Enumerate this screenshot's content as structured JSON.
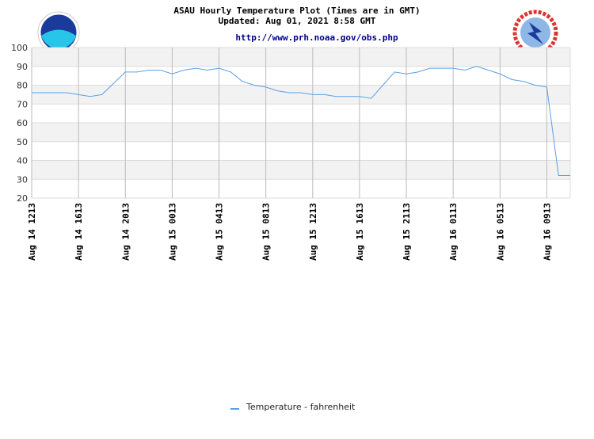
{
  "chart_data": {
    "type": "line",
    "title": "ASAU Hourly Temperature Plot (Times are in GMT)",
    "subtitle": "Updated: Aug 01, 2021 8:58 GMT",
    "link": "http://www.prh.noaa.gov/obs.php",
    "categories": [
      "Aug 14 1213",
      null,
      null,
      null,
      "Aug 14 1613",
      null,
      null,
      null,
      "Aug 14 2013",
      null,
      null,
      null,
      "Aug 15 0013",
      null,
      null,
      null,
      "Aug 15 0413",
      null,
      null,
      null,
      "Aug 15 0813",
      null,
      null,
      null,
      "Aug 15 1213",
      null,
      null,
      null,
      "Aug 15 1613",
      null,
      null,
      null,
      "Aug 15 2113",
      null,
      null,
      null,
      "Aug 16 0113",
      null,
      null,
      null,
      "Aug 16 0513",
      null,
      null,
      null,
      "Aug 16 0913",
      null,
      null
    ],
    "series": [
      {
        "name": "Temperature - fahrenheit",
        "color": "#5aa0e6",
        "values": [
          76,
          76,
          76,
          76,
          75,
          74,
          75,
          81,
          87,
          87,
          88,
          88,
          86,
          88,
          89,
          88,
          89,
          87,
          82,
          80,
          79,
          77,
          76,
          76,
          75,
          75,
          74,
          74,
          74,
          73,
          80,
          87,
          86,
          87,
          89,
          89,
          89,
          88,
          90,
          88,
          86,
          83,
          82,
          80,
          79,
          32,
          32
        ]
      }
    ],
    "ylim": [
      20,
      100
    ],
    "yticks": [
      20,
      30,
      40,
      50,
      60,
      70,
      80,
      90,
      100
    ],
    "grid": true
  }
}
